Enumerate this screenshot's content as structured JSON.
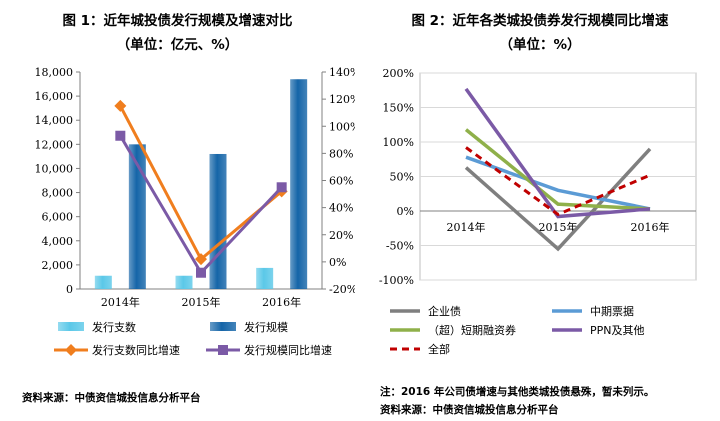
{
  "left": {
    "title": "图 1：近年城投债发行规模及增速对比",
    "subtitle": "（单位：亿元、%）",
    "source": "资料来源：中债资信城投信息分析平台"
  },
  "right": {
    "title": "图 2：近年各类城投债券发行规模同比增速",
    "subtitle": "（单位：%）",
    "note": "注：2016 年公司债增速与其他类城投债悬殊，暂未列示。",
    "source": "资料来源：中债资信城投信息分析平台"
  },
  "chart_data": [
    {
      "type": "bar",
      "categories": [
        "2014年",
        "2015年",
        "2016年"
      ],
      "y_left": {
        "ticks": [
          "0",
          "2,000",
          "4,000",
          "6,000",
          "8,000",
          "10,000",
          "12,000",
          "14,000",
          "16,000",
          "18,000"
        ],
        "ylim": [
          0,
          18000
        ]
      },
      "y_right": {
        "ticks": [
          "-20%",
          "0%",
          "20%",
          "40%",
          "60%",
          "80%",
          "100%",
          "120%",
          "140%"
        ],
        "ylim": [
          -20,
          140
        ]
      },
      "series": [
        {
          "name": "发行支数",
          "kind": "bar",
          "axis": "left",
          "values": [
            1100,
            1100,
            1750
          ],
          "color": "#5bc8e8"
        },
        {
          "name": "发行规模",
          "kind": "bar",
          "axis": "left",
          "values": [
            12000,
            11200,
            17400
          ],
          "color": "#1565a8"
        },
        {
          "name": "发行支数同比增速",
          "kind": "line",
          "axis": "right",
          "values": [
            115,
            2,
            52
          ],
          "color": "#f07e1e",
          "marker": "diamond"
        },
        {
          "name": "发行规模同比增速",
          "kind": "line",
          "axis": "right",
          "values": [
            93,
            -8,
            55
          ],
          "color": "#7b5aa6",
          "marker": "square"
        }
      ],
      "legend_position": "bottom"
    },
    {
      "type": "line",
      "categories": [
        "2014年",
        "2015年",
        "2016年"
      ],
      "y": {
        "ticks": [
          "-100%",
          "-50%",
          "0%",
          "50%",
          "100%",
          "150%",
          "200%"
        ],
        "ylim": [
          -100,
          200
        ]
      },
      "series": [
        {
          "name": "企业债",
          "values": [
            63,
            -55,
            90
          ],
          "color": "#7f7f7f",
          "dash": false
        },
        {
          "name": "中期票据",
          "values": [
            78,
            30,
            3
          ],
          "color": "#5b9bd5",
          "dash": false
        },
        {
          "name": "（超）短期融资券",
          "values": [
            118,
            10,
            3
          ],
          "color": "#8fb04a",
          "dash": false
        },
        {
          "name": "PPN及其他",
          "values": [
            177,
            -8,
            3
          ],
          "color": "#7b5aa6",
          "dash": false
        },
        {
          "name": "全部",
          "values": [
            92,
            -5,
            52
          ],
          "color": "#c00000",
          "dash": true
        }
      ],
      "grid": true,
      "legend_position": "bottom"
    }
  ]
}
